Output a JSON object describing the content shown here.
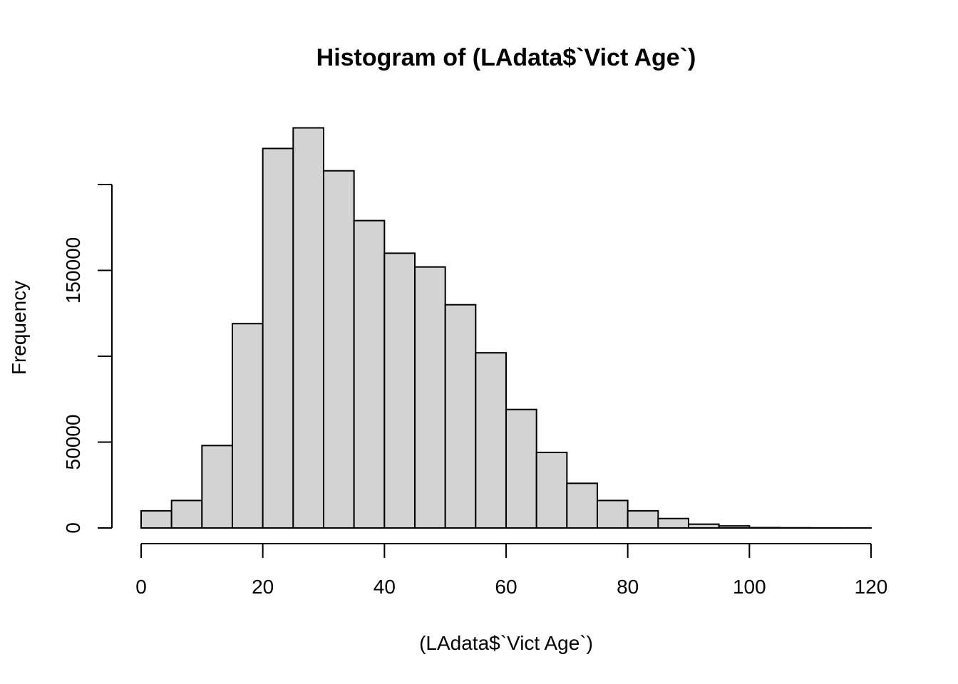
{
  "chart_data": {
    "type": "bar",
    "title": "Histogram of (LAdata$`Vict Age`)",
    "xlabel": "(LAdata$`Vict Age`)",
    "ylabel": "Frequency",
    "bin_width": 5,
    "bins": [
      {
        "x0": 0,
        "x1": 5,
        "value": 10000
      },
      {
        "x0": 5,
        "x1": 10,
        "value": 16000
      },
      {
        "x0": 10,
        "x1": 15,
        "value": 48000
      },
      {
        "x0": 15,
        "x1": 20,
        "value": 119000
      },
      {
        "x0": 20,
        "x1": 25,
        "value": 221000
      },
      {
        "x0": 25,
        "x1": 30,
        "value": 233000
      },
      {
        "x0": 30,
        "x1": 35,
        "value": 208000
      },
      {
        "x0": 35,
        "x1": 40,
        "value": 179000
      },
      {
        "x0": 40,
        "x1": 45,
        "value": 160000
      },
      {
        "x0": 45,
        "x1": 50,
        "value": 152000
      },
      {
        "x0": 50,
        "x1": 55,
        "value": 130000
      },
      {
        "x0": 55,
        "x1": 60,
        "value": 102000
      },
      {
        "x0": 60,
        "x1": 65,
        "value": 69000
      },
      {
        "x0": 65,
        "x1": 70,
        "value": 44000
      },
      {
        "x0": 70,
        "x1": 75,
        "value": 26000
      },
      {
        "x0": 75,
        "x1": 80,
        "value": 16000
      },
      {
        "x0": 80,
        "x1": 85,
        "value": 10000
      },
      {
        "x0": 85,
        "x1": 90,
        "value": 5500
      },
      {
        "x0": 90,
        "x1": 95,
        "value": 2200
      },
      {
        "x0": 95,
        "x1": 100,
        "value": 1200
      },
      {
        "x0": 100,
        "x1": 105,
        "value": 200
      },
      {
        "x0": 105,
        "x1": 110,
        "value": 100
      },
      {
        "x0": 110,
        "x1": 115,
        "value": 50
      },
      {
        "x0": 115,
        "x1": 120,
        "value": 30
      }
    ],
    "xlim": [
      0,
      120
    ],
    "ylim": [
      0,
      240000
    ],
    "x_ticks": [
      0,
      20,
      40,
      60,
      80,
      100,
      120
    ],
    "y_ticks": [
      0,
      50000,
      100000,
      150000,
      200000
    ],
    "y_tick_labels": [
      "0",
      "50000",
      "",
      "150000",
      ""
    ],
    "grid": false,
    "legend": "none"
  }
}
